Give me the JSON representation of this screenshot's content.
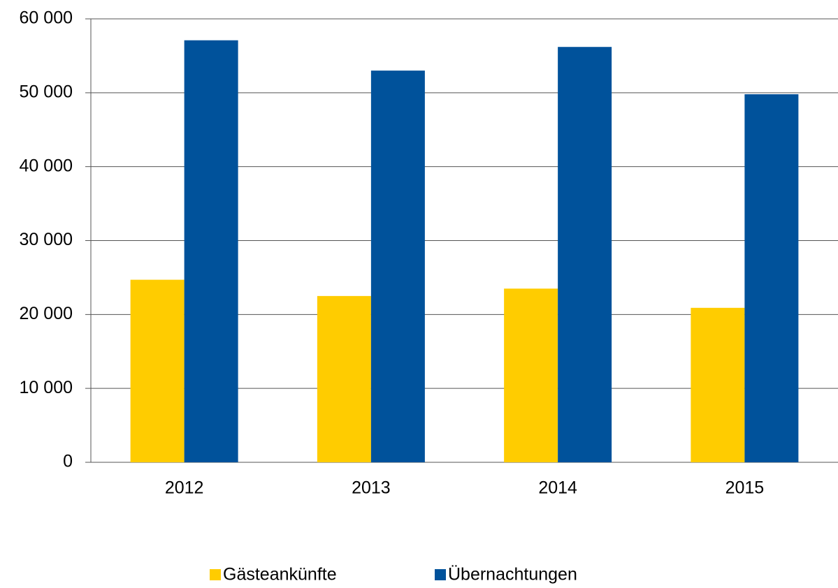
{
  "chart_data": {
    "type": "bar",
    "categories": [
      "2012",
      "2013",
      "2014",
      "2015"
    ],
    "series": [
      {
        "name": "Gästeankünfte",
        "color": "#ffcc00",
        "values": [
          24700,
          22500,
          23500,
          20900
        ]
      },
      {
        "name": "Übernachtungen",
        "color": "#00529b",
        "values": [
          57100,
          53000,
          56200,
          49800
        ]
      }
    ],
    "ylim": [
      0,
      60000
    ],
    "yticks": [
      0,
      {
        "value": 10000,
        "label": "10 000"
      },
      {
        "value": 20000,
        "label": "20 000"
      },
      {
        "value": 30000,
        "label": "30 000"
      },
      {
        "value": 40000,
        "label": "40 000"
      },
      {
        "value": 50000,
        "label": "50 000"
      },
      {
        "value": 60000,
        "label": "60 000"
      }
    ],
    "grid": true,
    "legend": "bottom"
  }
}
